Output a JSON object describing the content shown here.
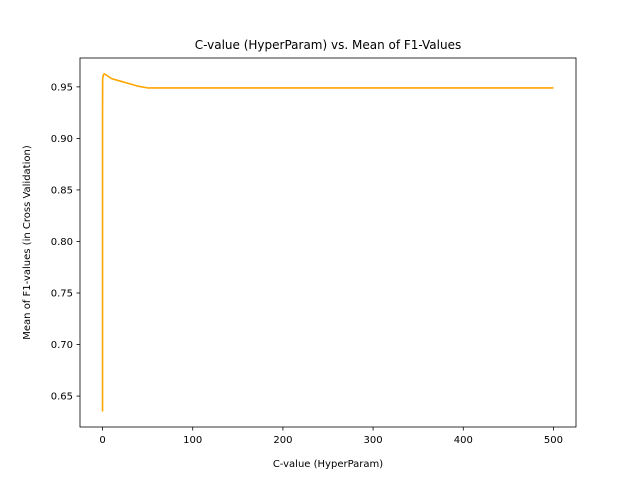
{
  "chart_data": {
    "type": "line",
    "title": "C-value (HyperParam) vs. Mean of F1-Values",
    "xlabel": "C-value (HyperParam)",
    "ylabel": "Mean of F1-values (in Cross Validation)",
    "xlim": [
      -25,
      525
    ],
    "ylim": [
      0.62,
      0.978
    ],
    "xticks": [
      0,
      100,
      200,
      300,
      400,
      500
    ],
    "xtick_labels": [
      "0",
      "100",
      "200",
      "300",
      "400",
      "500"
    ],
    "yticks": [
      0.65,
      0.7,
      0.75,
      0.8,
      0.85,
      0.9,
      0.95
    ],
    "ytick_labels": [
      "0.65",
      "0.70",
      "0.75",
      "0.80",
      "0.85",
      "0.90",
      "0.95"
    ],
    "grid": false,
    "series": [
      {
        "color": "#ffa500",
        "x": [
          0.0001,
          0.001,
          0.01,
          0.1,
          1,
          2,
          5,
          10,
          20,
          30,
          40,
          50,
          100,
          200,
          300,
          400,
          500
        ],
        "y": [
          0.635,
          0.8,
          0.93,
          0.958,
          0.962,
          0.9625,
          0.961,
          0.958,
          0.9555,
          0.953,
          0.9505,
          0.949,
          0.949,
          0.949,
          0.949,
          0.949,
          0.949
        ]
      }
    ]
  }
}
